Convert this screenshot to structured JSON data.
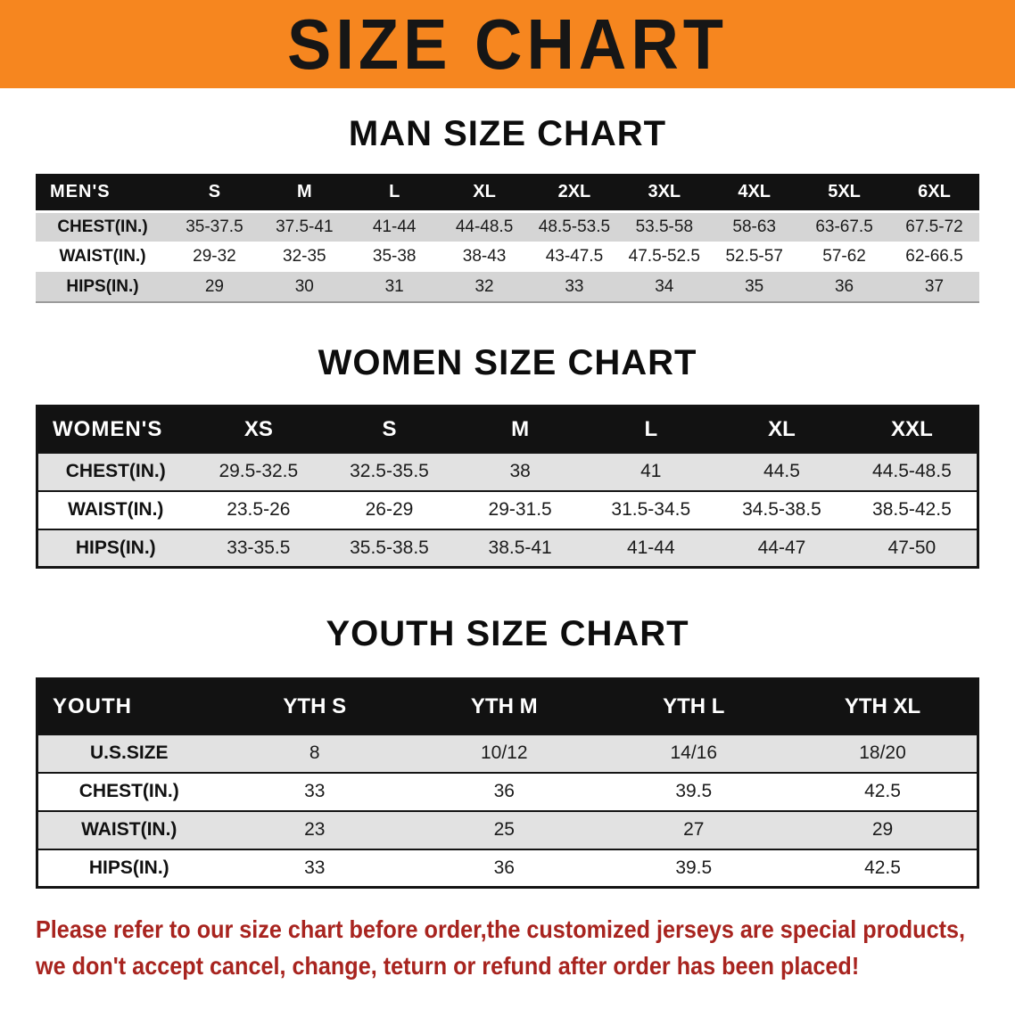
{
  "banner": {
    "title": "SIZE CHART"
  },
  "sections": [
    {
      "id": "men",
      "heading": "MAN SIZE CHART",
      "table": {
        "corner_label": "MEN'S",
        "columns": [
          "S",
          "M",
          "L",
          "XL",
          "2XL",
          "3XL",
          "4XL",
          "5XL",
          "6XL"
        ],
        "rows": [
          {
            "label": "CHEST(IN.)",
            "values": [
              "35-37.5",
              "37.5-41",
              "41-44",
              "44-48.5",
              "48.5-53.5",
              "53.5-58",
              "58-63",
              "63-67.5",
              "67.5-72"
            ]
          },
          {
            "label": "WAIST(IN.)",
            "values": [
              "29-32",
              "32-35",
              "35-38",
              "38-43",
              "43-47.5",
              "47.5-52.5",
              "52.5-57",
              "57-62",
              "62-66.5"
            ]
          },
          {
            "label": "HIPS(IN.)",
            "values": [
              "29",
              "30",
              "31",
              "32",
              "33",
              "34",
              "35",
              "36",
              "37"
            ]
          }
        ]
      }
    },
    {
      "id": "women",
      "heading": "WOMEN SIZE CHART",
      "table": {
        "corner_label": "WOMEN'S",
        "columns": [
          "XS",
          "S",
          "M",
          "L",
          "XL",
          "XXL"
        ],
        "rows": [
          {
            "label": "CHEST(IN.)",
            "values": [
              "29.5-32.5",
              "32.5-35.5",
              "38",
              "41",
              "44.5",
              "44.5-48.5"
            ]
          },
          {
            "label": "WAIST(IN.)",
            "values": [
              "23.5-26",
              "26-29",
              "29-31.5",
              "31.5-34.5",
              "34.5-38.5",
              "38.5-42.5"
            ]
          },
          {
            "label": "HIPS(IN.)",
            "values": [
              "33-35.5",
              "35.5-38.5",
              "38.5-41",
              "41-44",
              "44-47",
              "47-50"
            ]
          }
        ]
      }
    },
    {
      "id": "youth",
      "heading": "YOUTH SIZE CHART",
      "table": {
        "corner_label": "YOUTH",
        "columns": [
          "YTH S",
          "YTH M",
          "YTH L",
          "YTH XL"
        ],
        "rows": [
          {
            "label": "U.S.SIZE",
            "values": [
              "8",
              "10/12",
              "14/16",
              "18/20"
            ]
          },
          {
            "label": "CHEST(IN.)",
            "values": [
              "33",
              "36",
              "39.5",
              "42.5"
            ]
          },
          {
            "label": "WAIST(IN.)",
            "values": [
              "23",
              "25",
              "27",
              "29"
            ]
          },
          {
            "label": "HIPS(IN.)",
            "values": [
              "33",
              "36",
              "39.5",
              "42.5"
            ]
          }
        ]
      }
    }
  ],
  "footer": {
    "line1": "Please refer to our size chart before order,the customized jerseys are special products,",
    "line2": "we don't accept cancel, change, teturn or refund after order has been placed!"
  },
  "colors": {
    "banner_bg": "#F6861F",
    "table_header_bg": "#121212",
    "stripe_men": "#D5D5D5",
    "stripe_light": "#E2E2E2",
    "table_border": "#141414",
    "note_text": "#A8241F"
  }
}
